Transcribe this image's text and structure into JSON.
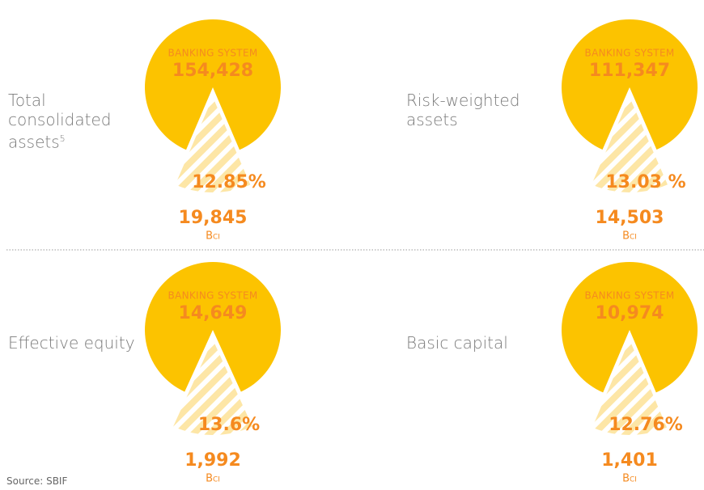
{
  "source": "Source: SBIF",
  "chart_data": [
    {
      "type": "pie",
      "title": "Total consolidated assets",
      "footnote": "5",
      "categories": [
        "BANKING SYSTEM",
        "Bci"
      ],
      "values": [
        154428,
        19845
      ],
      "value_labels": [
        "154,428",
        "19,845"
      ],
      "share": 12.85,
      "share_label": "12.85%",
      "colors": [
        "#fcc300",
        "#f58a1f"
      ]
    },
    {
      "type": "pie",
      "title": "Risk-weighted assets",
      "categories": [
        "BANKING SYSTEM",
        "Bci"
      ],
      "values": [
        111347,
        14503
      ],
      "value_labels": [
        "111,347",
        "14,503"
      ],
      "share": 13.03,
      "share_label": "13.03 %",
      "colors": [
        "#fcc300",
        "#f58a1f"
      ]
    },
    {
      "type": "pie",
      "title": "Effective equity",
      "categories": [
        "BANKING SYSTEM",
        "Bci"
      ],
      "values": [
        14649,
        1992
      ],
      "value_labels": [
        "14,649",
        "1,992"
      ],
      "share": 13.6,
      "share_label": "13.6%",
      "colors": [
        "#fcc300",
        "#f58a1f"
      ]
    },
    {
      "type": "pie",
      "title": "Basic capital",
      "categories": [
        "BANKING SYSTEM",
        "Bci"
      ],
      "values": [
        10974,
        1401
      ],
      "value_labels": [
        "10,974",
        "1,401"
      ],
      "share": 12.76,
      "share_label": "12.76%",
      "colors": [
        "#fcc300",
        "#f58a1f"
      ]
    }
  ]
}
